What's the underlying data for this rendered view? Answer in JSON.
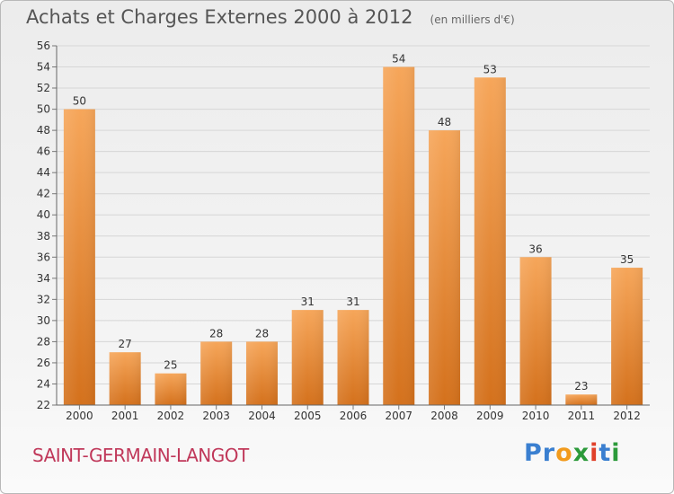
{
  "header": {
    "title": "Achats et Charges Externes 2000 à 2012",
    "subtitle": "(en milliers d'€)"
  },
  "location": "SAINT-GERMAIN-LANGOT",
  "logo": {
    "text": "Proxiti",
    "letters": [
      "P",
      "r",
      "o",
      "x",
      "i",
      "t",
      "i"
    ],
    "colors": [
      "#3a7fd0",
      "#3a7fd0",
      "#f29b1d",
      "#2b9a3a",
      "#e0402a",
      "#3a7fd0",
      "#2b9a3a"
    ]
  },
  "colors": {
    "bar_top": "#f6a65a",
    "bar_bottom": "#d4711c",
    "title": "#555555",
    "location": "#c0385a"
  },
  "chart_data": {
    "type": "bar",
    "title": "Achats et Charges Externes 2000 à 2012",
    "subtitle": "(en milliers d'€)",
    "xlabel": "",
    "ylabel": "",
    "categories": [
      "2000",
      "2001",
      "2002",
      "2003",
      "2004",
      "2005",
      "2006",
      "2007",
      "2008",
      "2009",
      "2010",
      "2011",
      "2012"
    ],
    "values": [
      50,
      27,
      25,
      28,
      28,
      31,
      31,
      54,
      48,
      53,
      36,
      23,
      35
    ],
    "ylim": [
      22,
      56
    ],
    "yticks": [
      22,
      24,
      26,
      28,
      30,
      32,
      34,
      36,
      38,
      40,
      42,
      44,
      46,
      48,
      50,
      52,
      54,
      56
    ],
    "grid": true,
    "data_labels": true
  }
}
